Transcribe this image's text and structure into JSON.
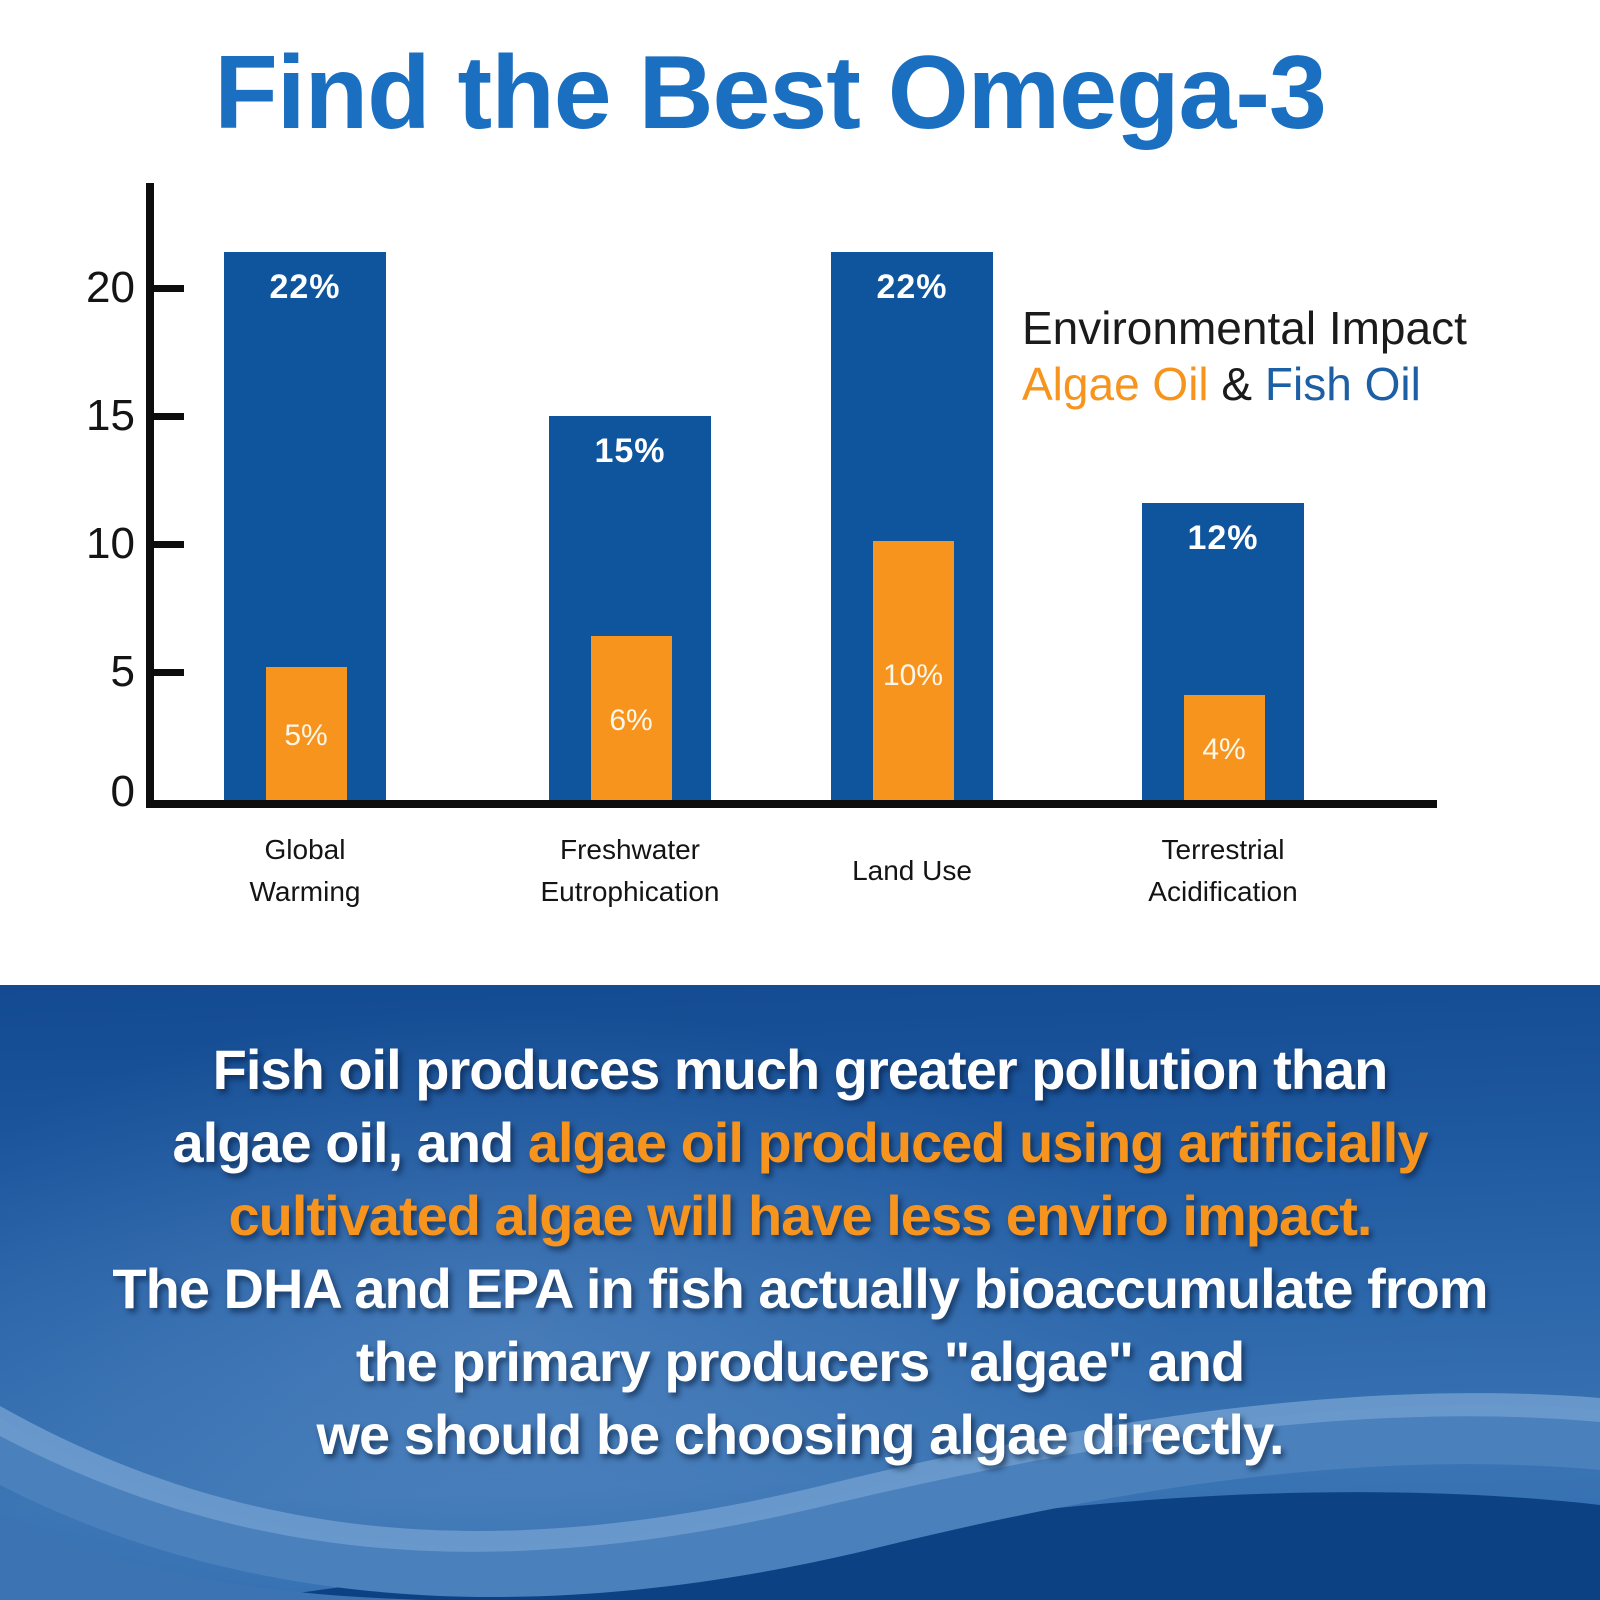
{
  "title": "Find the Best Omega-3",
  "legend": {
    "line1": "Environmental Impact",
    "algae_label": "Algae Oil",
    "amp": " & ",
    "fish_label": "Fish Oil"
  },
  "chart_data": {
    "type": "bar",
    "title": "Environmental Impact Algae Oil & Fish Oil",
    "categories": [
      "Global Warming",
      "Freshwater Eutrophication",
      "Land Use",
      "Terrestrial Acidification"
    ],
    "categories_display": [
      [
        "Global",
        "Warming"
      ],
      [
        "Freshwater",
        "Eutrophication"
      ],
      [
        "Land Use"
      ],
      [
        "Terrestrial",
        "Acidification"
      ]
    ],
    "series": [
      {
        "name": "Fish Oil",
        "color": "#0f559e",
        "values": [
          22,
          15,
          22,
          12
        ],
        "labels": [
          "22%",
          "15%",
          "22%",
          "12%"
        ]
      },
      {
        "name": "Algae Oil",
        "color": "#f7941d",
        "values": [
          5,
          6,
          10,
          4
        ],
        "labels": [
          "5%",
          "6%",
          "10%",
          "4%"
        ]
      }
    ],
    "drawn_heights": {
      "fish_oil": [
        21.4,
        15.0,
        21.4,
        11.6
      ],
      "algae_oil": [
        5.2,
        6.4,
        10.1,
        4.1
      ]
    },
    "yticks": [
      0,
      5,
      10,
      15,
      20
    ],
    "ylim": [
      0,
      24.2
    ],
    "xlabel": "",
    "ylabel": "",
    "grid": false,
    "legend_position": "right",
    "bar_style": "overlaid-front"
  },
  "footer": {
    "lines": [
      [
        {
          "text": "Fish oil produces much greater pollution than",
          "color": "white"
        }
      ],
      [
        {
          "text": "algae oil, and ",
          "color": "white"
        },
        {
          "text": "algae oil produced using artificially",
          "color": "orange"
        }
      ],
      [
        {
          "text": "cultivated algae will have less enviro impact.",
          "color": "orange"
        }
      ],
      [
        {
          "text": "The DHA and EPA in fish actually bioaccumulate from",
          "color": "white"
        }
      ],
      [
        {
          "text": "the primary producers \"algae\" and",
          "color": "white"
        }
      ],
      [
        {
          "text": "we should be choosing algae directly.",
          "color": "white"
        }
      ]
    ]
  },
  "colors": {
    "bar_blue": "#0f559e",
    "bar_orange": "#f7941d",
    "title_blue": "#1b6fc0",
    "legend_fish_blue": "#1d5fa5",
    "text_white": "#ffffff",
    "text_orange": "#f7941d",
    "panel_top_blue": "#134a91",
    "wave_light": "#6d9bcd",
    "wave_mid": "#4a80bc",
    "wave_dark": "#0c4283",
    "axis_black": "#0d0d0d"
  }
}
